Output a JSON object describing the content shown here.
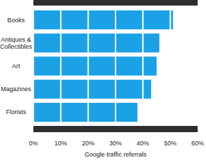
{
  "chart_data": {
    "type": "bar",
    "orientation": "horizontal",
    "categories": [
      "Books",
      "Antiques & Collectibles",
      "Art",
      "Magazines",
      "Florists"
    ],
    "values": [
      51,
      46,
      45,
      43,
      38
    ],
    "color": "#1ba1e6",
    "x_label": "Google traffic referrals",
    "xlim": [
      0,
      60
    ],
    "xticks": [
      {
        "value": 0,
        "label": "0%"
      },
      {
        "value": 10,
        "label": "10%"
      },
      {
        "value": 20,
        "label": "20%"
      },
      {
        "value": 30,
        "label": "30%"
      },
      {
        "value": 40,
        "label": "40%"
      },
      {
        "value": 50,
        "label": "50%"
      },
      {
        "value": 60,
        "label": "60%"
      }
    ],
    "grid": true
  }
}
